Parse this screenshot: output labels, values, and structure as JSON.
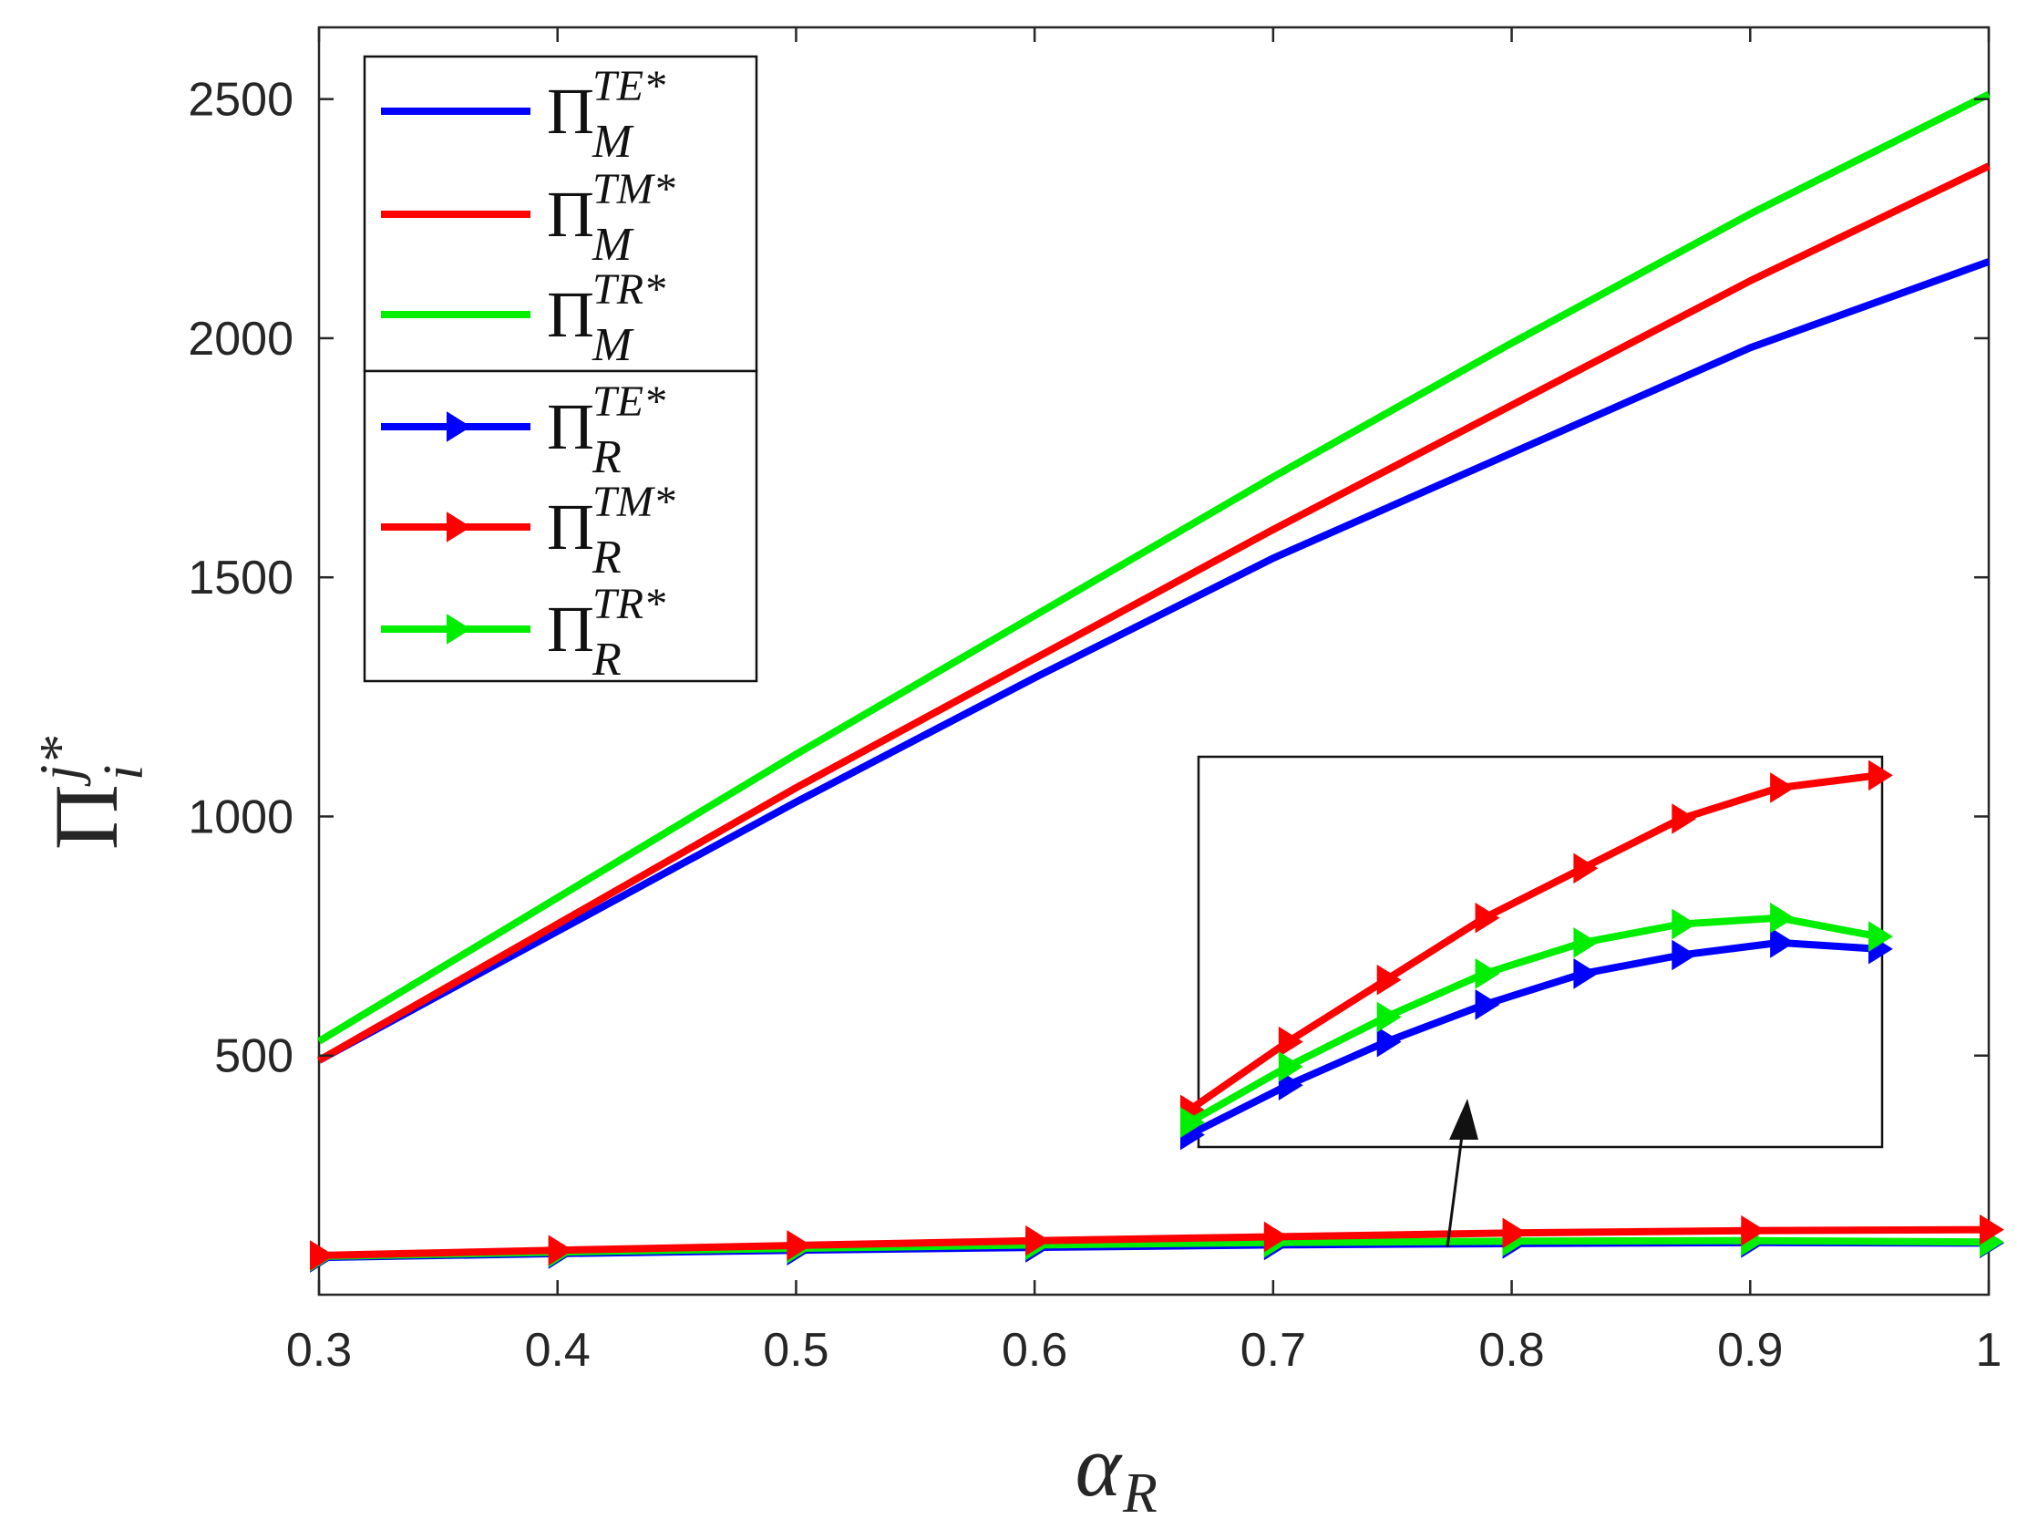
{
  "chart_data": {
    "type": "line",
    "title": "",
    "xlabel": {
      "symbol": "α",
      "subscript": "R"
    },
    "ylabel": {
      "symbol": "Π",
      "superscript": "j*",
      "subscript": "i"
    },
    "xlim": [
      0.3,
      1.0
    ],
    "ylim": [
      0,
      2650
    ],
    "xticks": [
      0.3,
      0.4,
      0.5,
      0.6,
      0.7,
      0.8,
      0.9,
      1.0
    ],
    "xtick_labels": [
      "0.3",
      "0.4",
      "0.5",
      "0.6",
      "0.7",
      "0.8",
      "0.9",
      "1"
    ],
    "yticks": [
      500,
      1000,
      1500,
      2000,
      2500
    ],
    "ytick_labels": [
      "500",
      "1000",
      "1500",
      "2000",
      "2500"
    ],
    "grid": false,
    "legend_position": "top-left",
    "x": [
      0.3,
      0.4,
      0.5,
      0.6,
      0.7,
      0.8,
      0.9,
      1.0
    ],
    "series": [
      {
        "name": "TE-M",
        "legend_sup": "TE*",
        "legend_sub": "M",
        "color": "#0000ff",
        "marker": "none",
        "values": [
          490,
          760,
          1030,
          1290,
          1540,
          1760,
          1980,
          2160
        ]
      },
      {
        "name": "TM-M",
        "legend_sup": "TM*",
        "legend_sub": "M",
        "color": "#ff0000",
        "marker": "none",
        "values": [
          490,
          775,
          1060,
          1330,
          1600,
          1860,
          2120,
          2360
        ]
      },
      {
        "name": "TR-M",
        "legend_sup": "TR*",
        "legend_sub": "M",
        "color": "#00ee00",
        "marker": "none",
        "values": [
          530,
          830,
          1130,
          1420,
          1710,
          1990,
          2260,
          2510
        ]
      },
      {
        "name": "TE-R",
        "legend_sup": "TE*",
        "legend_sub": "R",
        "color": "#0000ff",
        "marker": "triangle-right",
        "values": [
          78,
          86,
          93,
          99,
          104,
          107,
          109,
          108
        ]
      },
      {
        "name": "TM-R",
        "legend_sup": "TM*",
        "legend_sub": "R",
        "color": "#ff0000",
        "marker": "triangle-right",
        "values": [
          82,
          93,
          103,
          113,
          121,
          129,
          134,
          136
        ]
      },
      {
        "name": "TR-R",
        "legend_sup": "TR*",
        "legend_sub": "R",
        "color": "#00ee00",
        "marker": "triangle-right",
        "values": [
          80,
          89,
          97,
          104,
          109,
          112,
          113,
          110
        ]
      }
    ],
    "inset": {
      "description": "Zoomed view of the lower three retailer curves",
      "series_names": [
        "TE-R",
        "TM-R",
        "TR-R"
      ]
    }
  }
}
